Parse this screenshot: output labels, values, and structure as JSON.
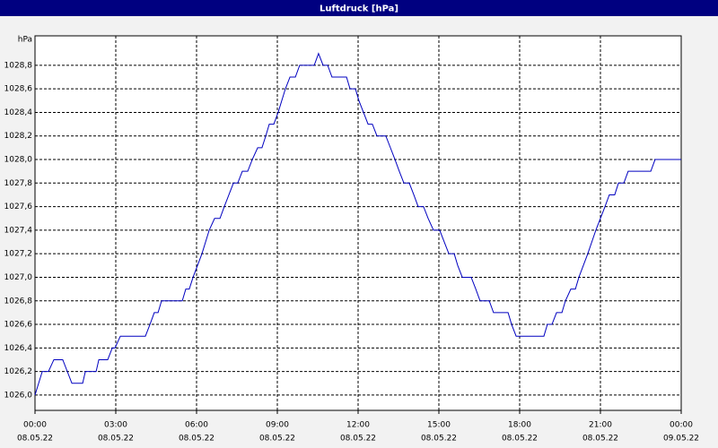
{
  "chart_data": {
    "type": "line",
    "title": "Luftdruck [hPa]",
    "y_unit": "hPa",
    "x": [
      0,
      0.27,
      0.5,
      0.7,
      1.03,
      1.37,
      1.77,
      1.87,
      2.27,
      2.37,
      2.7,
      2.87,
      2.97,
      3.17,
      4.1,
      4.27,
      4.43,
      4.57,
      4.7,
      5.47,
      5.6,
      5.73,
      5.87,
      6.2,
      6.47,
      6.67,
      6.87,
      7.03,
      7.37,
      7.53,
      7.7,
      7.9,
      8.07,
      8.27,
      8.43,
      8.57,
      8.7,
      8.87,
      9.03,
      9.3,
      9.47,
      9.67,
      9.83,
      10.37,
      10.53,
      10.7,
      10.87,
      11.03,
      11.57,
      11.7,
      11.9,
      12.03,
      12.2,
      12.37,
      12.53,
      12.7,
      13.03,
      13.2,
      13.37,
      13.53,
      13.7,
      13.9,
      14.07,
      14.23,
      14.43,
      14.6,
      14.8,
      15.03,
      15.2,
      15.37,
      15.57,
      15.7,
      15.87,
      16.2,
      16.37,
      16.53,
      16.87,
      17.03,
      17.57,
      17.7,
      17.87,
      18.9,
      19.03,
      19.2,
      19.37,
      19.57,
      19.7,
      19.9,
      20.07,
      20.2,
      20.53,
      20.83,
      21.17,
      21.33,
      21.53,
      21.67,
      21.87,
      22.03,
      22.87,
      23.03,
      24
    ],
    "series": [
      {
        "name": "Luftdruck",
        "color": "#0000c0",
        "values": [
          1026.0,
          1026.2,
          1026.2,
          1026.3,
          1026.3,
          1026.1,
          1026.1,
          1026.2,
          1026.2,
          1026.3,
          1026.3,
          1026.4,
          1026.4,
          1026.5,
          1026.5,
          1026.6,
          1026.7,
          1026.7,
          1026.8,
          1026.8,
          1026.9,
          1026.9,
          1027.0,
          1027.2,
          1027.4,
          1027.5,
          1027.5,
          1027.6,
          1027.8,
          1027.8,
          1027.9,
          1027.9,
          1028.0,
          1028.1,
          1028.1,
          1028.2,
          1028.3,
          1028.3,
          1028.4,
          1028.6,
          1028.7,
          1028.7,
          1028.8,
          1028.8,
          1028.9,
          1028.8,
          1028.8,
          1028.7,
          1028.7,
          1028.6,
          1028.6,
          1028.5,
          1028.4,
          1028.3,
          1028.3,
          1028.2,
          1028.2,
          1028.1,
          1028.0,
          1027.9,
          1027.8,
          1027.8,
          1027.7,
          1027.6,
          1027.6,
          1027.5,
          1027.4,
          1027.4,
          1027.3,
          1027.2,
          1027.2,
          1027.1,
          1027.0,
          1027.0,
          1026.9,
          1026.8,
          1026.8,
          1026.7,
          1026.7,
          1026.6,
          1026.5,
          1026.5,
          1026.6,
          1026.6,
          1026.7,
          1026.7,
          1026.8,
          1026.9,
          1026.9,
          1027.0,
          1027.2,
          1027.4,
          1027.6,
          1027.7,
          1027.7,
          1027.8,
          1027.8,
          1027.9,
          1027.9,
          1028.0,
          1028.0
        ]
      }
    ],
    "xlim": [
      0,
      24
    ],
    "xticks": [
      {
        "value": 0,
        "label": "00:00"
      },
      {
        "value": 3,
        "label": "03:00"
      },
      {
        "value": 6,
        "label": "06:00"
      },
      {
        "value": 9,
        "label": "09:00"
      },
      {
        "value": 12,
        "label": "12:00"
      },
      {
        "value": 15,
        "label": "15:00"
      },
      {
        "value": 18,
        "label": "18:00"
      },
      {
        "value": 21,
        "label": "21:00"
      },
      {
        "value": 24,
        "label": "00:00"
      }
    ],
    "xtick_dates": [
      "08.05.22",
      "08.05.22",
      "08.05.22",
      "08.05.22",
      "08.05.22",
      "08.05.22",
      "08.05.22",
      "08.05.22",
      "09.05.22"
    ],
    "ylim": [
      1025.87,
      1029.05
    ],
    "yticks": [
      {
        "value": 1026.0,
        "label": "1026,0"
      },
      {
        "value": 1026.2,
        "label": "1026,2"
      },
      {
        "value": 1026.4,
        "label": "1026,4"
      },
      {
        "value": 1026.6,
        "label": "1026,6"
      },
      {
        "value": 1026.8,
        "label": "1026,8"
      },
      {
        "value": 1027.0,
        "label": "1027,0"
      },
      {
        "value": 1027.2,
        "label": "1027,2"
      },
      {
        "value": 1027.4,
        "label": "1027,4"
      },
      {
        "value": 1027.6,
        "label": "1027,6"
      },
      {
        "value": 1027.8,
        "label": "1027,8"
      },
      {
        "value": 1028.0,
        "label": "1028,0"
      },
      {
        "value": 1028.2,
        "label": "1028,2"
      },
      {
        "value": 1028.4,
        "label": "1028,4"
      },
      {
        "value": 1028.6,
        "label": "1028,6"
      },
      {
        "value": 1028.8,
        "label": "1028,8"
      }
    ],
    "grid": true
  }
}
